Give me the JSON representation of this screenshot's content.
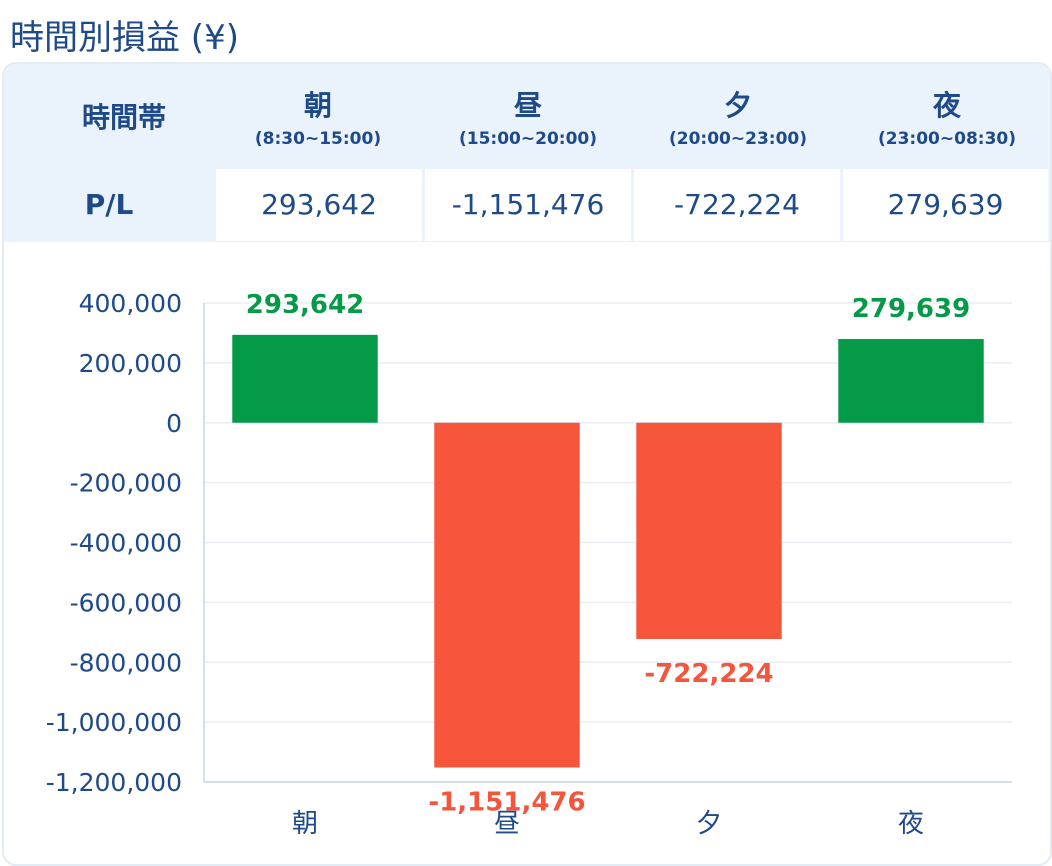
{
  "title": "時間別損益 (¥)",
  "table": {
    "header_label": "時間帯",
    "row_label": "P/L",
    "columns": [
      {
        "name": "朝",
        "range": "(8:30~15:00)",
        "value": "293,642"
      },
      {
        "name": "昼",
        "range": "(15:00~20:00)",
        "value": "-1,151,476"
      },
      {
        "name": "夕",
        "range": "(20:00~23:00)",
        "value": "-722,224"
      },
      {
        "name": "夜",
        "range": "(23:00~08:30)",
        "value": "279,639"
      }
    ]
  },
  "colors": {
    "positive": "#049a48",
    "negative": "#f4553b",
    "text": "#1e4a8a",
    "header_bg": "#eaf2fb",
    "grid": "#e8eef4"
  },
  "chart_data": {
    "type": "bar",
    "categories": [
      "朝",
      "昼",
      "夕",
      "夜"
    ],
    "values": [
      293642,
      -1151476,
      -722224,
      279639
    ],
    "value_labels": [
      "293,642",
      "-1,151,476",
      "-722,224",
      "279,639"
    ],
    "ylim": [
      -1200000,
      400000
    ],
    "yticks": [
      400000,
      200000,
      0,
      -200000,
      -400000,
      -600000,
      -800000,
      -1000000,
      -1200000
    ],
    "ytick_labels": [
      "400,000",
      "200,000",
      "0",
      "-200,000",
      "-400,000",
      "-600,000",
      "-800,000",
      "-1,000,000",
      "-1,200,000"
    ],
    "grid": true,
    "xlabel": "",
    "ylabel": ""
  }
}
